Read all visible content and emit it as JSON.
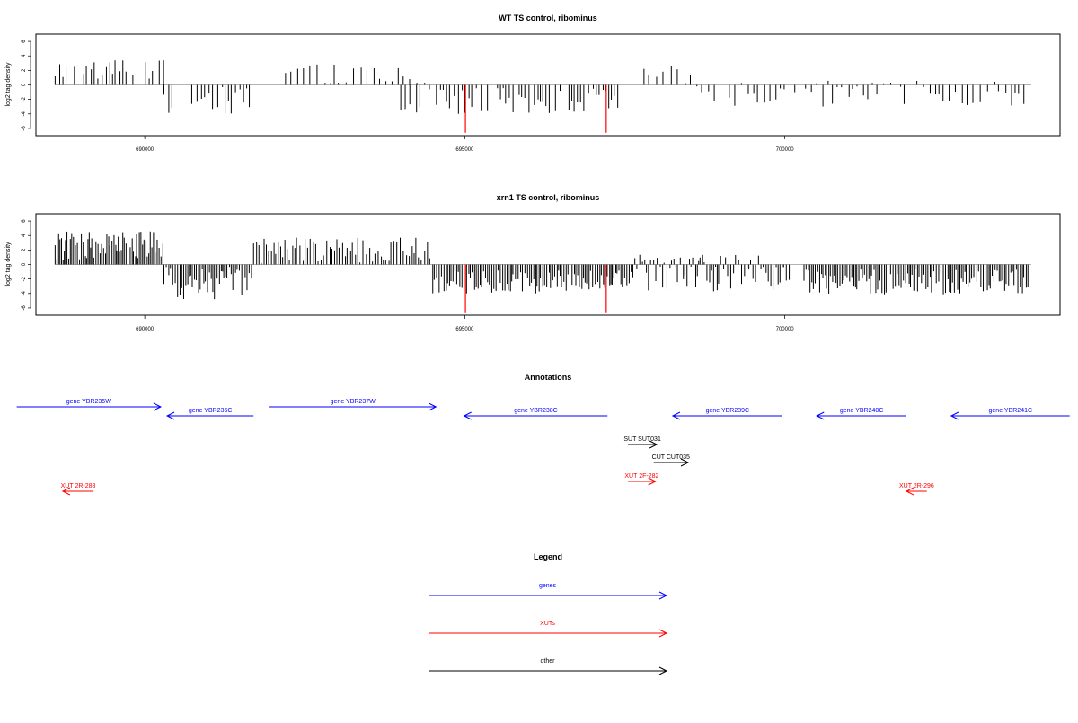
{
  "chart_data": [
    {
      "type": "bar",
      "title": "WT TS control, ribominus",
      "xlabel": "",
      "ylabel": "log2 tag density",
      "xlim": [
        688300,
        704300
      ],
      "ylim": [
        -7,
        7
      ],
      "xticks": [
        "690000",
        "695000",
        "700000"
      ],
      "yticks": [
        "6",
        "4",
        "2",
        "0",
        "-2",
        "-4",
        "-6"
      ],
      "highlight_lines": [
        {
          "x": 695010,
          "y": -6.6,
          "color": "#ff0000"
        },
        {
          "x": 697210,
          "y": -6.6,
          "color": "#ff0000"
        }
      ],
      "regions": [
        {
          "from": 688600,
          "to": 690300,
          "step": 60,
          "mean": 2.0,
          "amp": 1.4
        },
        {
          "from": 690300,
          "to": 691700,
          "step": 60,
          "mean": -2.0,
          "amp": 2.2
        },
        {
          "from": 692200,
          "to": 694500,
          "step": 90,
          "mean": 1.4,
          "amp": 1.6
        },
        {
          "from": 694000,
          "to": 697400,
          "step": 55,
          "mean": -2.2,
          "amp": 1.8
        },
        {
          "from": 697800,
          "to": 698700,
          "step": 110,
          "mean": 0.8,
          "amp": 1.8
        },
        {
          "from": 698700,
          "to": 703800,
          "step": 85,
          "mean": -1.2,
          "amp": 1.8
        }
      ]
    },
    {
      "type": "bar",
      "title": "xrn1 TS control, ribominus",
      "xlabel": "",
      "ylabel": "log2 tag density",
      "xlim": [
        688300,
        704300
      ],
      "ylim": [
        -7,
        7
      ],
      "xticks": [
        "690000",
        "695000",
        "700000"
      ],
      "yticks": [
        "6",
        "4",
        "2",
        "0",
        "-2",
        "-4",
        "-6"
      ],
      "highlight_lines": [
        {
          "x": 695010,
          "y": -6.6,
          "color": "#ff0000"
        },
        {
          "x": 697210,
          "y": -6.6,
          "color": "#ff0000"
        }
      ],
      "regions": [
        {
          "from": 688600,
          "to": 690300,
          "step": 25,
          "mean": 2.6,
          "amp": 2.0
        },
        {
          "from": 690300,
          "to": 691700,
          "step": 30,
          "mean": -2.6,
          "amp": 2.3
        },
        {
          "from": 691700,
          "to": 694500,
          "step": 40,
          "mean": 2.0,
          "amp": 1.8
        },
        {
          "from": 694500,
          "to": 697600,
          "step": 30,
          "mean": -2.4,
          "amp": 1.6
        },
        {
          "from": 697600,
          "to": 700100,
          "step": 35,
          "mean": -1.2,
          "amp": 2.6
        },
        {
          "from": 700300,
          "to": 703800,
          "step": 30,
          "mean": -2.4,
          "amp": 1.8
        }
      ]
    }
  ],
  "annotations": {
    "title": "Annotations",
    "features": [
      {
        "label": "gene YBR235W",
        "from": 688000,
        "to": 690250,
        "dir": "right",
        "row": 0,
        "color": "#0000ff"
      },
      {
        "label": "gene YBR236C",
        "from": 690350,
        "to": 691700,
        "dir": "left",
        "row": 1,
        "color": "#0000ff"
      },
      {
        "label": "gene YBR237W",
        "from": 691950,
        "to": 694550,
        "dir": "right",
        "row": 0,
        "color": "#0000ff"
      },
      {
        "label": "gene YBR238C",
        "from": 694990,
        "to": 697230,
        "dir": "left",
        "row": 1,
        "color": "#0000ff"
      },
      {
        "label": "gene YBR239C",
        "from": 698250,
        "to": 699960,
        "dir": "left",
        "row": 1,
        "color": "#0000ff"
      },
      {
        "label": "gene YBR240C",
        "from": 700500,
        "to": 701900,
        "dir": "left",
        "row": 1,
        "color": "#0000ff"
      },
      {
        "label": "gene YBR241C",
        "from": 702600,
        "to": 704450,
        "dir": "left",
        "row": 1,
        "color": "#0000ff"
      },
      {
        "label": "SUT SUT031",
        "from": 697550,
        "to": 698000,
        "dir": "right",
        "row": 2,
        "color": "#000000"
      },
      {
        "label": "CUT CUT035",
        "from": 697950,
        "to": 698490,
        "dir": "right",
        "row": 3,
        "color": "#000000"
      },
      {
        "label": "XUT 2F-282",
        "from": 697550,
        "to": 697980,
        "dir": "right",
        "row": 4,
        "color": "#ff0000"
      },
      {
        "label": "XUT 2R-288",
        "from": 688720,
        "to": 689200,
        "dir": "left",
        "row": 5,
        "color": "#ff0000"
      },
      {
        "label": "XUT 2R-296",
        "from": 701900,
        "to": 702220,
        "dir": "left",
        "row": 5,
        "color": "#ff0000"
      }
    ]
  },
  "legend": {
    "title": "Legend",
    "items": [
      {
        "label": "genes",
        "color": "#0000ff"
      },
      {
        "label": "XUTs",
        "color": "#ff0000"
      },
      {
        "label": "other",
        "color": "#000000"
      }
    ]
  }
}
